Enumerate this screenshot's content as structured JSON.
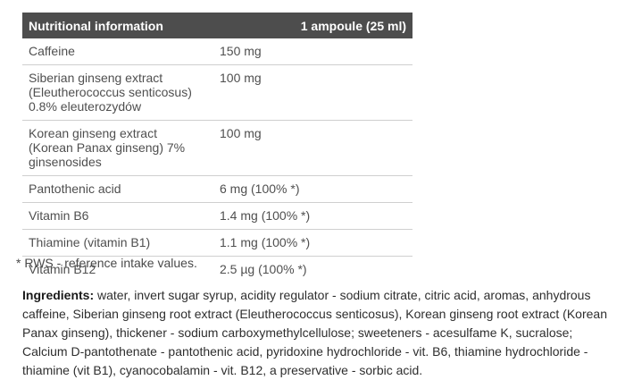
{
  "table": {
    "header": {
      "label": "Nutritional information",
      "value": "1 ampoule (25 ml)"
    },
    "rows": [
      {
        "label": "Caffeine",
        "sub": "",
        "value": "150 mg"
      },
      {
        "label": "Siberian ginseng extract",
        "sub": "(Eleutherococcus senticosus) 0.8% eleuterozydów",
        "value": "100 mg"
      },
      {
        "label": "Korean ginseng extract",
        "sub": "(Korean Panax ginseng) 7% ginsenosides",
        "value": "100 mg"
      },
      {
        "label": "Pantothenic acid",
        "sub": "",
        "value": "6 mg (100% *)"
      },
      {
        "label": "Vitamin B6",
        "sub": "",
        "value": "1.4 mg (100% *)"
      },
      {
        "label": "Thiamine (vitamin B1)",
        "sub": "",
        "value": "1.1 mg (100% *)"
      },
      {
        "label": "Vitamin B12",
        "sub": "",
        "value": "2.5 µg (100% *)"
      }
    ],
    "footnote": "* RWS - reference intake values."
  },
  "ingredients": {
    "label": "Ingredients:",
    "text": " water, invert sugar syrup, acidity regulator - sodium citrate, citric acid, aromas, anhydrous caffeine, Siberian ginseng root extract (Eleutherococcus senticosus), Korean ginseng root extract (Korean Panax ginseng), thickener - sodium carboxymethylcellulose; sweeteners - acesulfame K, sucralose; Calcium D-pantothenate - pantothenic acid, pyridoxine hydrochloride - vit. B6, thiamine hydrochloride - thiamine (vit B1), cyanocobalamin - vit. B12, a preservative - sorbic acid."
  },
  "colors": {
    "header_bg": "#4d4d4d",
    "header_text": "#ffffff",
    "row_text": "#4f4f4f",
    "border": "#cfcfcf",
    "footnote_text": "#4a4a4a",
    "ingredients_text": "#2e2e2e"
  }
}
